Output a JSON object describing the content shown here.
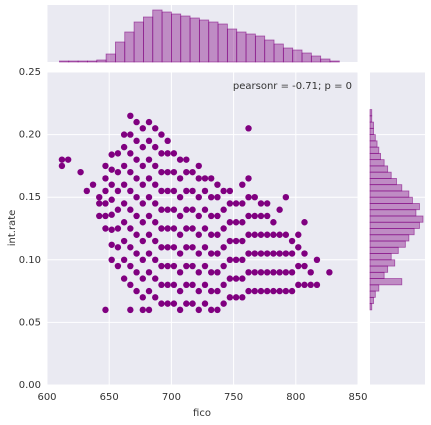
{
  "chart_data": [
    {
      "type": "scatter",
      "x_label": "fico",
      "y_label": "int.rate",
      "annotation": "pearsonr = -0.71; p = 0",
      "color": "#800080",
      "grid": true,
      "xlim": [
        600,
        850
      ],
      "xticks": [
        600,
        650,
        700,
        750,
        800,
        850
      ],
      "ylim": [
        0,
        0.25
      ],
      "yticks": [
        {
          "value": 0,
          "label": "0.00"
        },
        0.05,
        {
          "value": 0.1,
          "label": "0.10"
        },
        0.15,
        {
          "value": 0.2,
          "label": "0.20"
        },
        0.25
      ],
      "x": [
        612,
        612,
        617,
        627,
        632,
        637,
        642,
        642,
        642,
        647,
        647,
        647,
        647,
        647,
        647,
        647,
        652,
        652,
        652,
        652,
        652,
        652,
        652,
        652,
        657,
        657,
        657,
        657,
        657,
        657,
        657,
        662,
        662,
        662,
        662,
        662,
        662,
        662,
        662,
        662,
        667,
        667,
        667,
        667,
        667,
        667,
        667,
        667,
        667,
        667,
        667,
        672,
        672,
        672,
        672,
        672,
        672,
        672,
        672,
        672,
        672,
        677,
        677,
        677,
        677,
        677,
        677,
        677,
        677,
        677,
        677,
        677,
        682,
        682,
        682,
        682,
        682,
        682,
        682,
        682,
        682,
        682,
        682,
        687,
        687,
        687,
        687,
        687,
        687,
        687,
        687,
        687,
        687,
        692,
        692,
        692,
        692,
        692,
        692,
        692,
        692,
        692,
        692,
        697,
        697,
        697,
        697,
        697,
        697,
        697,
        697,
        697,
        697,
        702,
        702,
        702,
        702,
        702,
        702,
        702,
        702,
        702,
        707,
        707,
        707,
        707,
        707,
        707,
        707,
        707,
        707,
        712,
        712,
        712,
        712,
        712,
        712,
        712,
        712,
        712,
        717,
        717,
        717,
        717,
        717,
        717,
        717,
        717,
        722,
        722,
        722,
        722,
        722,
        722,
        722,
        722,
        722,
        727,
        727,
        727,
        727,
        727,
        727,
        727,
        727,
        732,
        732,
        732,
        732,
        732,
        732,
        732,
        732,
        737,
        737,
        737,
        737,
        737,
        737,
        737,
        737,
        742,
        742,
        742,
        742,
        742,
        742,
        742,
        747,
        747,
        747,
        747,
        747,
        747,
        747,
        752,
        752,
        752,
        752,
        752,
        752,
        757,
        757,
        757,
        757,
        757,
        757,
        757,
        762,
        762,
        762,
        762,
        762,
        762,
        762,
        762,
        767,
        767,
        767,
        767,
        767,
        767,
        772,
        772,
        772,
        772,
        772,
        772,
        777,
        777,
        777,
        777,
        777,
        777,
        782,
        782,
        782,
        782,
        782,
        787,
        787,
        787,
        787,
        787,
        792,
        792,
        792,
        792,
        792,
        797,
        797,
        797,
        797,
        802,
        802,
        802,
        802,
        807,
        807,
        807,
        807,
        812,
        812,
        817,
        817,
        827
      ],
      "values": [
        0.175,
        0.18,
        0.18,
        0.17,
        0.155,
        0.16,
        0.135,
        0.145,
        0.15,
        0.06,
        0.125,
        0.135,
        0.145,
        0.155,
        0.165,
        0.175,
        0.1,
        0.112,
        0.124,
        0.136,
        0.148,
        0.16,
        0.172,
        0.184,
        0.095,
        0.11,
        0.125,
        0.14,
        0.155,
        0.17,
        0.185,
        0.085,
        0.1,
        0.115,
        0.13,
        0.145,
        0.16,
        0.175,
        0.19,
        0.2,
        0.06,
        0.08,
        0.095,
        0.11,
        0.125,
        0.14,
        0.155,
        0.17,
        0.185,
        0.2,
        0.215,
        0.075,
        0.09,
        0.105,
        0.12,
        0.135,
        0.15,
        0.165,
        0.18,
        0.195,
        0.21,
        0.06,
        0.07,
        0.085,
        0.1,
        0.115,
        0.13,
        0.145,
        0.16,
        0.175,
        0.19,
        0.205,
        0.06,
        0.075,
        0.09,
        0.105,
        0.12,
        0.135,
        0.15,
        0.165,
        0.18,
        0.195,
        0.21,
        0.07,
        0.085,
        0.1,
        0.115,
        0.13,
        0.145,
        0.16,
        0.175,
        0.19,
        0.205,
        0.065,
        0.08,
        0.095,
        0.11,
        0.125,
        0.14,
        0.155,
        0.17,
        0.185,
        0.2,
        0.065,
        0.08,
        0.095,
        0.11,
        0.125,
        0.14,
        0.155,
        0.17,
        0.185,
        0.195,
        0.065,
        0.08,
        0.095,
        0.11,
        0.125,
        0.14,
        0.155,
        0.17,
        0.185,
        0.06,
        0.075,
        0.09,
        0.105,
        0.12,
        0.135,
        0.15,
        0.165,
        0.18,
        0.065,
        0.08,
        0.095,
        0.11,
        0.125,
        0.14,
        0.155,
        0.17,
        0.18,
        0.065,
        0.08,
        0.095,
        0.11,
        0.125,
        0.14,
        0.155,
        0.17,
        0.06,
        0.075,
        0.09,
        0.105,
        0.12,
        0.135,
        0.15,
        0.165,
        0.175,
        0.065,
        0.08,
        0.095,
        0.11,
        0.125,
        0.14,
        0.155,
        0.165,
        0.06,
        0.075,
        0.09,
        0.105,
        0.12,
        0.135,
        0.15,
        0.165,
        0.06,
        0.075,
        0.09,
        0.105,
        0.12,
        0.135,
        0.15,
        0.16,
        0.065,
        0.08,
        0.095,
        0.11,
        0.125,
        0.14,
        0.155,
        0.07,
        0.085,
        0.1,
        0.115,
        0.13,
        0.145,
        0.155,
        0.07,
        0.085,
        0.1,
        0.115,
        0.13,
        0.145,
        0.07,
        0.085,
        0.1,
        0.115,
        0.13,
        0.145,
        0.16,
        0.075,
        0.09,
        0.105,
        0.12,
        0.135,
        0.15,
        0.165,
        0.205,
        0.075,
        0.09,
        0.105,
        0.12,
        0.135,
        0.15,
        0.075,
        0.09,
        0.105,
        0.12,
        0.135,
        0.145,
        0.075,
        0.09,
        0.105,
        0.12,
        0.135,
        0.145,
        0.075,
        0.09,
        0.105,
        0.12,
        0.13,
        0.075,
        0.09,
        0.105,
        0.12,
        0.14,
        0.075,
        0.09,
        0.105,
        0.12,
        0.15,
        0.075,
        0.09,
        0.105,
        0.115,
        0.08,
        0.095,
        0.11,
        0.12,
        0.08,
        0.095,
        0.105,
        0.13,
        0.08,
        0.09,
        0.08,
        0.1,
        0.09
      ]
    },
    {
      "type": "histogram",
      "orientation": "vertical",
      "color": "#800080",
      "bins": [
        610,
        617.5,
        625,
        632.5,
        640,
        647.5,
        655,
        662.5,
        670,
        677.5,
        685,
        692.5,
        700,
        707.5,
        715,
        722.5,
        730,
        737.5,
        745,
        752.5,
        760,
        767.5,
        775,
        782.5,
        790,
        797.5,
        805,
        812.5,
        820,
        827.5,
        835
      ],
      "values": [
        1,
        1,
        1,
        1,
        2,
        8,
        20,
        30,
        40,
        45,
        52,
        50,
        48,
        46,
        44,
        42,
        40,
        38,
        33,
        30,
        28,
        26,
        22,
        18,
        14,
        12,
        9,
        6,
        3,
        1
      ]
    },
    {
      "type": "histogram",
      "orientation": "horizontal",
      "color": "#800080",
      "bins": [
        0.06,
        0.065,
        0.07,
        0.075,
        0.08,
        0.085,
        0.09,
        0.095,
        0.1,
        0.105,
        0.11,
        0.115,
        0.12,
        0.125,
        0.13,
        0.135,
        0.14,
        0.145,
        0.15,
        0.155,
        0.16,
        0.165,
        0.17,
        0.175,
        0.18,
        0.185,
        0.19,
        0.195,
        0.2,
        0.205,
        0.21,
        0.215,
        0.22
      ],
      "values": [
        1,
        2,
        3,
        5,
        18,
        8,
        10,
        14,
        12,
        16,
        20,
        22,
        25,
        28,
        30,
        26,
        28,
        24,
        22,
        18,
        15,
        12,
        10,
        8,
        6,
        5,
        4,
        3,
        2,
        2,
        1,
        1
      ]
    }
  ]
}
